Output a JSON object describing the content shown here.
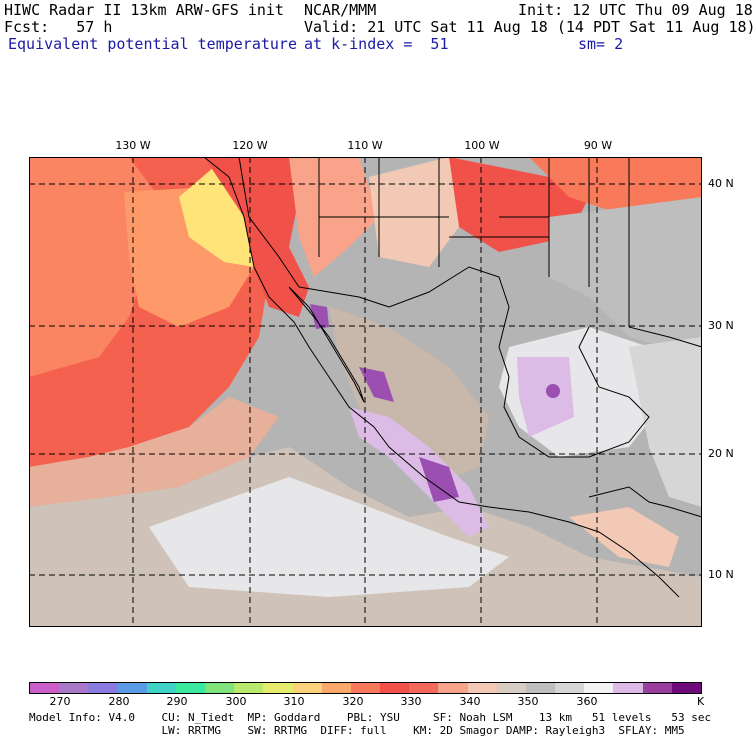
{
  "header": {
    "model_line": "HIWC Radar II 13km ARW-GFS init",
    "institution": "NCAR/MMM",
    "init": "Init: 12 UTC Thu 09 Aug 18",
    "fcst": "Fcst:   57 h",
    "valid": "Valid: 21 UTC Sat 11 Aug 18 (14 PDT Sat 11 Aug 18)",
    "field": "Equivalent potential temperature",
    "level": "at k-index =  51",
    "smoothing": "sm= 2"
  },
  "map": {
    "lon_labels": [
      "130 W",
      "120 W",
      "110 W",
      "100 W",
      "90 W"
    ],
    "lat_labels": [
      "40 N",
      "30 N",
      "20 N",
      "10 N"
    ],
    "colors": {
      "ocean_warm": "#f5614f",
      "ocean_hot": "#fe9a6a",
      "yellow": "#ffe47a",
      "land_gray": "#b4b4b4",
      "light_gray": "#cfc3b9",
      "white_gray": "#e7e7ea",
      "purple": "#cfa3dc",
      "dark_purple": "#9b4fb0"
    }
  },
  "colorbar": {
    "colors": [
      "#c95ec9",
      "#a978c9",
      "#8b7ae0",
      "#5a9be6",
      "#3fd2c6",
      "#3ae8a0",
      "#7de37a",
      "#b9ea6e",
      "#e6ec6e",
      "#fbd27a",
      "#fba86a",
      "#f87a5a",
      "#f0524a",
      "#f36a5a",
      "#f9a48a",
      "#f2c9b4",
      "#d8ccc3",
      "#bebebe",
      "#d6d6d6",
      "#f2f2f2",
      "#dcbce6",
      "#9a3e9f",
      "#6e0a7a"
    ],
    "labels": [
      "270",
      "280",
      "290",
      "300",
      "310",
      "320",
      "330",
      "340",
      "350",
      "360"
    ],
    "unit": "K"
  },
  "footer": {
    "line1": "Model Info: V4.0    CU: N_Tiedt  MP: Goddard    PBL: YSU     SF: Noah LSM    13 km   51 levels   53 sec",
    "line2": "                    LW: RRTMG    SW: RRTMG  DIFF: full    KM: 2D Smagor DAMP: Rayleigh3  SFLAY: MM5"
  }
}
